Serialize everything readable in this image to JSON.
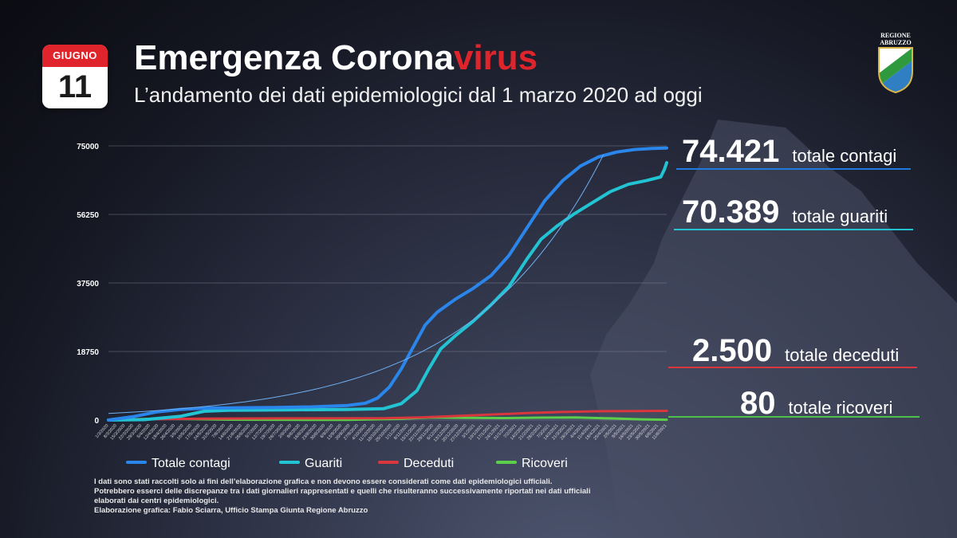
{
  "calendar": {
    "month": "GIUGNO",
    "day": "11"
  },
  "header": {
    "title_main": "Emergenza Corona",
    "title_accent": "virus",
    "subtitle": "L’andamento dei dati epidemiologici dal 1 marzo 2020 ad oggi"
  },
  "logo": {
    "line1": "REGIONE",
    "line2": "ABRUZZO"
  },
  "stats": [
    {
      "value": "74.421",
      "label": "totale contagi",
      "color": "#1e7be0"
    },
    {
      "value": "70.389",
      "label": "totale guariti",
      "color": "#22c4d4"
    },
    {
      "value": "2.500",
      "label": "totale deceduti",
      "color": "#d9363e"
    },
    {
      "value": "80",
      "label": "totale ricoveri",
      "color": "#4cc04a"
    }
  ],
  "colors": {
    "accent": "#e0242b",
    "contagi": "#2a86ea",
    "guariti": "#22c4d4",
    "deceduti": "#d9363e",
    "ricoveri": "#5ccf4a"
  },
  "disclaimer": [
    "I dati sono stati raccolti solo ai fini dell’elaborazione grafica e non devono essere considerati come dati epidemiologici ufficiali.",
    "Potrebbero esserci delle discrepanze tra i dati giornalieri rappresentati e quelli che risulteranno successivamente riportati nei dati ufficiali",
    "elaborati dai centri epidemiologici.",
    "Elaborazione grafica: Fabio Sciarra, Ufficio Stampa Giunta Regione Abruzzo"
  ],
  "chart_data": {
    "type": "line",
    "ylim": [
      0,
      75000
    ],
    "y_ticks": [
      "0",
      "18750",
      "37500",
      "56250",
      "75000"
    ],
    "x_ticks": [
      "1/3/2020",
      "8/3/2020",
      "15/3/2020",
      "22/3/2020",
      "29/3/2020",
      "5/4/2020",
      "12/4/2020",
      "19/4/2020",
      "26/4/2020",
      "3/5/2020",
      "10/5/2020",
      "17/5/2020",
      "24/5/2020",
      "31/5/2020",
      "7/6/2020",
      "14/6/2020",
      "21/6/2020",
      "28/6/2020",
      "5/7/2020",
      "12/7/2020",
      "19/7/2020",
      "26/7/2020",
      "2/8/2020",
      "9/8/2020",
      "16/8/2020",
      "23/8/2020",
      "30/8/2020",
      "6/9/2020",
      "13/9/2020",
      "20/9/2020",
      "27/9/2020",
      "4/10/2020",
      "11/10/2020",
      "18/10/2020",
      "25/10/2020",
      "1/11/2020",
      "8/11/2020",
      "15/11/2020",
      "22/11/2020",
      "29/11/2020",
      "6/12/2020",
      "13/12/2020",
      "20/12/2020",
      "27/12/2020",
      "3/1/2021",
      "10/1/2021",
      "17/1/2021",
      "24/1/2021",
      "31/1/2021",
      "7/2/2021",
      "14/2/2021",
      "21/2/2021",
      "28/2/2021",
      "7/3/2021",
      "14/3/2021",
      "21/3/2021",
      "28/3/2021",
      "4/4/2021",
      "11/4/2021",
      "18/4/2021",
      "25/4/2021",
      "2/5/2021",
      "9/5/2021",
      "16/5/2021",
      "23/5/2021",
      "30/5/2021",
      "6/6/2021",
      "11/6/2021"
    ],
    "x_days_range": [
      0,
      467
    ],
    "legend_position": "bottom",
    "series": [
      {
        "name": "Totale contagi",
        "color": "#2a86ea",
        "points": [
          [
            0,
            0
          ],
          [
            20,
            900
          ],
          [
            40,
            2200
          ],
          [
            60,
            2900
          ],
          [
            80,
            3250
          ],
          [
            110,
            3350
          ],
          [
            140,
            3450
          ],
          [
            170,
            3600
          ],
          [
            200,
            4000
          ],
          [
            215,
            4600
          ],
          [
            225,
            6000
          ],
          [
            235,
            9000
          ],
          [
            245,
            14000
          ],
          [
            255,
            20000
          ],
          [
            265,
            26000
          ],
          [
            275,
            29500
          ],
          [
            290,
            33000
          ],
          [
            305,
            36000
          ],
          [
            320,
            39500
          ],
          [
            335,
            45000
          ],
          [
            350,
            52500
          ],
          [
            365,
            60000
          ],
          [
            380,
            65500
          ],
          [
            395,
            69500
          ],
          [
            410,
            72000
          ],
          [
            425,
            73300
          ],
          [
            440,
            74000
          ],
          [
            455,
            74300
          ],
          [
            467,
            74421
          ]
        ]
      },
      {
        "name": "Guariti",
        "color": "#22c4d4",
        "points": [
          [
            0,
            0
          ],
          [
            30,
            100
          ],
          [
            60,
            1000
          ],
          [
            80,
            2400
          ],
          [
            100,
            2650
          ],
          [
            150,
            2800
          ],
          [
            200,
            2900
          ],
          [
            230,
            3100
          ],
          [
            245,
            4500
          ],
          [
            258,
            8000
          ],
          [
            268,
            14000
          ],
          [
            278,
            19500
          ],
          [
            290,
            23000
          ],
          [
            305,
            27000
          ],
          [
            320,
            31500
          ],
          [
            335,
            36500
          ],
          [
            350,
            44000
          ],
          [
            362,
            49500
          ],
          [
            375,
            53000
          ],
          [
            390,
            56500
          ],
          [
            405,
            59500
          ],
          [
            420,
            62500
          ],
          [
            435,
            64500
          ],
          [
            450,
            65500
          ],
          [
            462,
            66500
          ],
          [
            465,
            68500
          ],
          [
            467,
            70389
          ]
        ]
      },
      {
        "name": "Deceduti",
        "color": "#d9363e",
        "points": [
          [
            0,
            0
          ],
          [
            40,
            250
          ],
          [
            80,
            400
          ],
          [
            150,
            460
          ],
          [
            230,
            500
          ],
          [
            260,
            700
          ],
          [
            290,
            1100
          ],
          [
            320,
            1500
          ],
          [
            350,
            1900
          ],
          [
            380,
            2200
          ],
          [
            410,
            2400
          ],
          [
            440,
            2470
          ],
          [
            467,
            2500
          ]
        ]
      },
      {
        "name": "Ricoveri",
        "color": "#5ccf4a",
        "points": [
          [
            0,
            0
          ],
          [
            40,
            400
          ],
          [
            60,
            300
          ],
          [
            100,
            100
          ],
          [
            200,
            50
          ],
          [
            240,
            300
          ],
          [
            270,
            700
          ],
          [
            300,
            600
          ],
          [
            330,
            550
          ],
          [
            360,
            650
          ],
          [
            390,
            700
          ],
          [
            420,
            450
          ],
          [
            445,
            200
          ],
          [
            467,
            80
          ]
        ]
      }
    ]
  }
}
